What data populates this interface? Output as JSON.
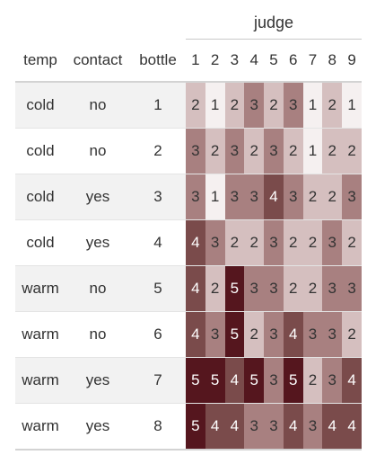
{
  "table": {
    "spanner": "judge",
    "headers": [
      "temp",
      "contact",
      "bottle",
      "1",
      "2",
      "3",
      "4",
      "5",
      "6",
      "7",
      "8",
      "9"
    ],
    "rows": [
      {
        "temp": "cold",
        "contact": "no",
        "bottle": "1",
        "ratings": [
          2,
          1,
          2,
          3,
          2,
          3,
          1,
          2,
          1
        ]
      },
      {
        "temp": "cold",
        "contact": "no",
        "bottle": "2",
        "ratings": [
          3,
          2,
          3,
          2,
          3,
          2,
          1,
          2,
          2
        ]
      },
      {
        "temp": "cold",
        "contact": "yes",
        "bottle": "3",
        "ratings": [
          3,
          1,
          3,
          3,
          4,
          3,
          2,
          2,
          3
        ]
      },
      {
        "temp": "cold",
        "contact": "yes",
        "bottle": "4",
        "ratings": [
          4,
          3,
          2,
          2,
          3,
          2,
          2,
          3,
          2
        ]
      },
      {
        "temp": "warm",
        "contact": "no",
        "bottle": "5",
        "ratings": [
          4,
          2,
          5,
          3,
          3,
          2,
          2,
          3,
          3
        ]
      },
      {
        "temp": "warm",
        "contact": "no",
        "bottle": "6",
        "ratings": [
          4,
          3,
          5,
          2,
          3,
          4,
          3,
          3,
          2
        ]
      },
      {
        "temp": "warm",
        "contact": "yes",
        "bottle": "7",
        "ratings": [
          5,
          5,
          4,
          5,
          3,
          5,
          2,
          3,
          4
        ]
      },
      {
        "temp": "warm",
        "contact": "yes",
        "bottle": "8",
        "ratings": [
          5,
          4,
          4,
          3,
          3,
          4,
          3,
          4,
          4
        ]
      }
    ]
  },
  "colors": {
    "scale": {
      "1": "#f5f0f0",
      "2": "#d5bfbf",
      "3": "#a88080",
      "4": "#7a4b4b",
      "5": "#55161e"
    },
    "light_text": "#ffffff",
    "dark_text": "#333333",
    "stripe": "#f2f2f2"
  }
}
